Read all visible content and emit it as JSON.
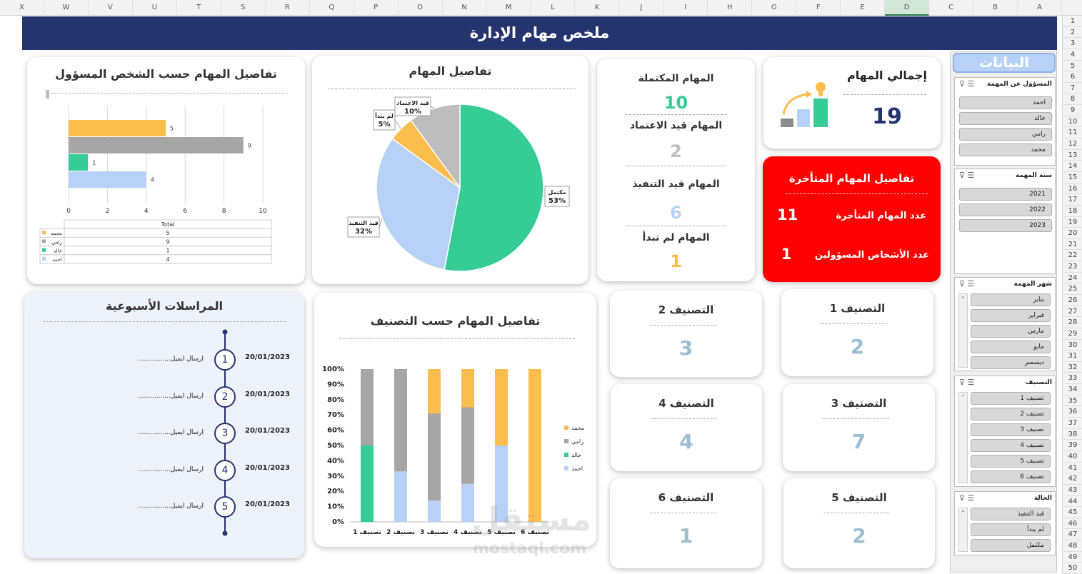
{
  "spreadsheet": {
    "columns": [
      "X",
      "W",
      "V",
      "U",
      "T",
      "S",
      "R",
      "Q",
      "P",
      "O",
      "N",
      "M",
      "L",
      "K",
      "J",
      "I",
      "H",
      "G",
      "F",
      "E",
      "D",
      "C",
      "B",
      "A"
    ],
    "rows": [
      "1",
      "2",
      "3",
      "4",
      "5",
      "6",
      "7",
      "8",
      "9",
      "10",
      "11",
      "12",
      "13",
      "14",
      "15",
      "16",
      "17",
      "18",
      "19",
      "20",
      "21",
      "22",
      "23",
      "24",
      "25",
      "26",
      "27",
      "28",
      "29",
      "30",
      "31",
      "32",
      "33",
      "34",
      "35",
      "36",
      "37",
      "38",
      "39",
      "40",
      "41",
      "42",
      "43",
      "44",
      "45",
      "46",
      "47",
      "48",
      "49",
      "50"
    ]
  },
  "header": {
    "title": "ملخص مهام الإدارة"
  },
  "total": {
    "title": "إجمالي المهام",
    "value": "19"
  },
  "status": {
    "completed_label": "المهام المكتملة",
    "completed_value": "10",
    "approval_label": "المهام قيد الاعتماد",
    "approval_value": "2",
    "progress_label": "المهام قيد التنفيذ",
    "progress_value": "6",
    "notstarted_label": "المهام لم تبدأ",
    "notstarted_value": "1"
  },
  "colors": {
    "completed": "#35cc96",
    "approval": "#bdbdbd",
    "progress": "#b8d1f7",
    "notstarted": "#fbbd4c",
    "late": "#ff0000",
    "navy": "#25336e"
  },
  "late": {
    "title": "تفاصيل المهام المتأخرة",
    "count_label": "عدد المهام المتأخرة",
    "count_value": "11",
    "people_label": "عدد الأشخاص المسؤولين",
    "people_value": "1"
  },
  "categories": [
    {
      "label": "التصنيف 1",
      "value": "2"
    },
    {
      "label": "التصنيف 2",
      "value": "3"
    },
    {
      "label": "التصنيف 3",
      "value": "7"
    },
    {
      "label": "التصنيف 4",
      "value": "4"
    },
    {
      "label": "التصنيف 5",
      "value": "2"
    },
    {
      "label": "التصنيف 6",
      "value": "1"
    }
  ],
  "weekly": {
    "title": "المراسلات الأسبوعية",
    "items": [
      {
        "num": "1",
        "date": "20/01/2023",
        "text": "أرسال ايميل................"
      },
      {
        "num": "2",
        "date": "20/01/2023",
        "text": "أرسال ايميل................"
      },
      {
        "num": "3",
        "date": "20/01/2023",
        "text": "أرسال ايميل................"
      },
      {
        "num": "4",
        "date": "20/01/2023",
        "text": "أرسال ايميل................"
      },
      {
        "num": "5",
        "date": "20/01/2023",
        "text": "أرسال ايميل................"
      }
    ]
  },
  "slicers": {
    "title": "البيانات",
    "owner": {
      "header": "المسؤول عن المهمة",
      "items": [
        "احمد",
        "خالد",
        "رامي",
        "محمد"
      ]
    },
    "year": {
      "header": "سنة المهمة",
      "items": [
        "2021",
        "2022",
        "2023"
      ]
    },
    "month": {
      "header": "شهر المهمة",
      "items": [
        "يناير",
        "فبراير",
        "مارس",
        "مايو",
        "ديسمبر"
      ]
    },
    "category": {
      "header": "التصنيف",
      "items": [
        "تصنيف 1",
        "تصنيف 2",
        "تصنيف 3",
        "تصنيف 4",
        "تصنيف 5",
        "تصنيف 6"
      ]
    },
    "status": {
      "header": "الحالة",
      "items": [
        "قيد التنفيذ",
        "لم يبدأ",
        "مكتمل"
      ]
    }
  },
  "chart_data": [
    {
      "type": "bar",
      "orientation": "horizontal",
      "title": "تفاصيل المهام حسب الشخص المسؤول",
      "categories": [
        "محمد",
        "رامي",
        "خالد",
        "احمد"
      ],
      "values": [
        5,
        9,
        1,
        4
      ],
      "colors": [
        "#fbbd4c",
        "#a6a6a6",
        "#35cc96",
        "#b8d1f7"
      ],
      "xticks": [
        "0",
        "2",
        "4",
        "6",
        "8",
        "10"
      ],
      "xlim": [
        0,
        10
      ],
      "table_header": "Total"
    },
    {
      "type": "pie",
      "title": "تفاصيل المهام",
      "slices": [
        {
          "label": "مكتمل",
          "pct": 53,
          "pct_label": "53%",
          "color": "#35cc96"
        },
        {
          "label": "قيد التنفيذ",
          "pct": 32,
          "pct_label": "32%",
          "color": "#b8d1f7"
        },
        {
          "label": "لم يبدأ",
          "pct": 5,
          "pct_label": "5%",
          "color": "#fbbd4c"
        },
        {
          "label": "قيد الاعتماد",
          "pct": 10,
          "pct_label": "10%",
          "color": "#bdbdbd"
        }
      ]
    },
    {
      "type": "bar",
      "stacked": "percent",
      "title": "تفاصيل المهام حسب التصنيف",
      "categories": [
        "تصنيف 1",
        "تصنيف 2",
        "تصنيف 3",
        "تصنيف 4",
        "تصنيف 5",
        "تصنيف 6"
      ],
      "series": [
        {
          "name": "احمد",
          "color": "#b8d1f7",
          "values": [
            0,
            33,
            14,
            25,
            50,
            0
          ]
        },
        {
          "name": "خالد",
          "color": "#35cc96",
          "values": [
            50,
            0,
            0,
            0,
            0,
            0
          ]
        },
        {
          "name": "رامي",
          "color": "#a6a6a6",
          "values": [
            50,
            67,
            57,
            50,
            0,
            0
          ]
        },
        {
          "name": "محمد",
          "color": "#fbbd4c",
          "values": [
            0,
            0,
            29,
            25,
            50,
            100
          ]
        }
      ],
      "yticks": [
        "0%",
        "10%",
        "20%",
        "30%",
        "40%",
        "50%",
        "60%",
        "70%",
        "80%",
        "90%",
        "100%"
      ],
      "legend_order": [
        "محمد",
        "رامي",
        "خالد",
        "احمد"
      ]
    }
  ],
  "watermark": {
    "brand": "مستقل",
    "domain": "mostaql.com"
  }
}
